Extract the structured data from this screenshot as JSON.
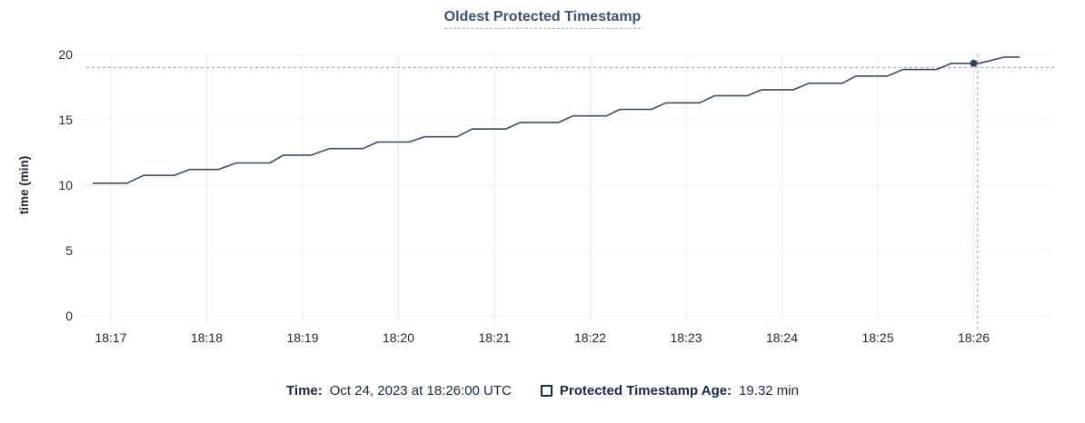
{
  "header": {
    "title": "Oldest Protected Timestamp"
  },
  "chart_data": {
    "type": "line",
    "title": "Oldest Protected Timestamp",
    "xlabel": "",
    "ylabel": "time (min)",
    "x_tick_labels": [
      "18:17",
      "18:18",
      "18:19",
      "18:20",
      "18:21",
      "18:22",
      "18:23",
      "18:24",
      "18:25",
      "18:26"
    ],
    "y_ticks": [
      0,
      5,
      10,
      15,
      20
    ],
    "ylim": [
      0,
      20
    ],
    "xlim_minutes_from_1817": [
      -0.3,
      9.8
    ],
    "grid": true,
    "legend_position": "bottom",
    "series": [
      {
        "name": "Protected Timestamp Age",
        "unit": "min",
        "color": "#3f4c66",
        "points_t_v": [
          [
            -0.19,
            10.15
          ],
          [
            0.17,
            10.15
          ],
          [
            0.34,
            10.75
          ],
          [
            0.66,
            10.75
          ],
          [
            0.82,
            11.2
          ],
          [
            1.12,
            11.2
          ],
          [
            1.31,
            11.7
          ],
          [
            1.66,
            11.7
          ],
          [
            1.8,
            12.3
          ],
          [
            2.09,
            12.3
          ],
          [
            2.28,
            12.8
          ],
          [
            2.63,
            12.8
          ],
          [
            2.78,
            13.3
          ],
          [
            3.11,
            13.3
          ],
          [
            3.27,
            13.7
          ],
          [
            3.61,
            13.7
          ],
          [
            3.77,
            14.3
          ],
          [
            4.12,
            14.3
          ],
          [
            4.27,
            14.8
          ],
          [
            4.67,
            14.8
          ],
          [
            4.82,
            15.3
          ],
          [
            5.17,
            15.3
          ],
          [
            5.31,
            15.8
          ],
          [
            5.64,
            15.8
          ],
          [
            5.79,
            16.3
          ],
          [
            6.14,
            16.3
          ],
          [
            6.3,
            16.85
          ],
          [
            6.64,
            16.85
          ],
          [
            6.79,
            17.3
          ],
          [
            7.12,
            17.3
          ],
          [
            7.28,
            17.8
          ],
          [
            7.63,
            17.8
          ],
          [
            7.77,
            18.35
          ],
          [
            8.1,
            18.35
          ],
          [
            8.26,
            18.85
          ],
          [
            8.61,
            18.85
          ],
          [
            8.77,
            19.32
          ],
          [
            9.06,
            19.32
          ],
          [
            9.32,
            19.8
          ],
          [
            9.48,
            19.8
          ]
        ]
      }
    ],
    "hover_marker": {
      "t": 9.0,
      "value": 19.32,
      "color": "#33415c"
    },
    "crosshair": {
      "vline_t": 9.04,
      "hline_value": 19.0,
      "color": "#9fb3c8"
    },
    "colors": {
      "grid": "#ececec",
      "axis_text": "#242a35",
      "ylabel_text": "#1b1f26"
    }
  },
  "legend": {
    "time_label": "Time:",
    "time_value": "Oct 24, 2023 at 18:26:00 UTC",
    "age_label": "Protected Timestamp Age:",
    "age_value": "19.32 min"
  }
}
